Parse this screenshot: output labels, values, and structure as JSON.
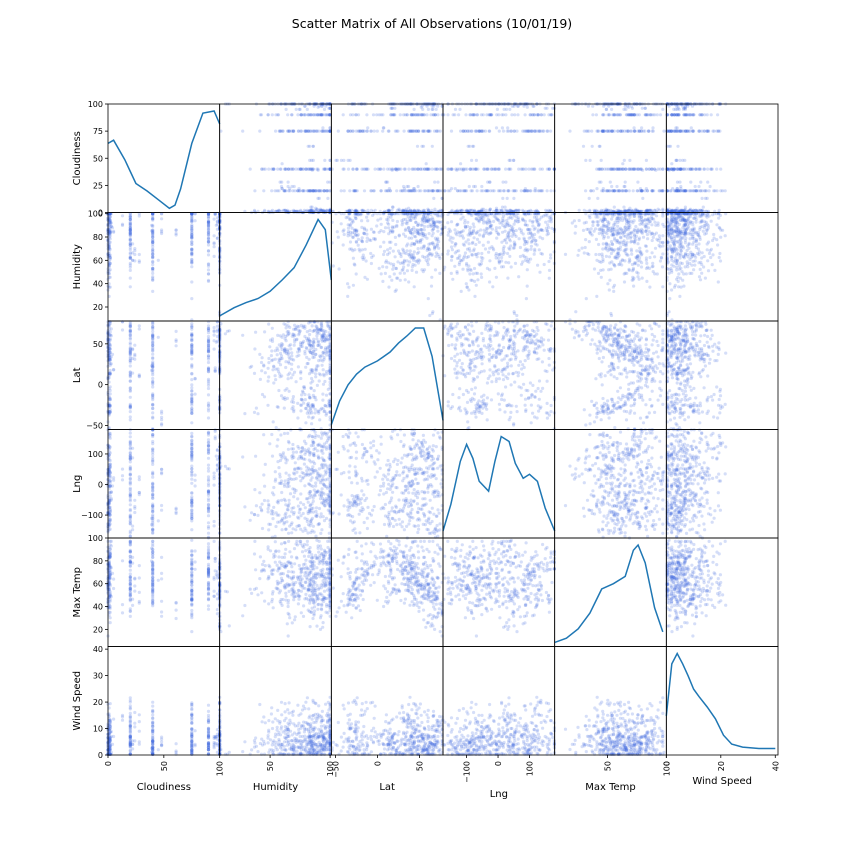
{
  "chart_data": {
    "type": "scatter",
    "title": "Scatter Matrix of All Observations (10/01/19)",
    "variables": [
      "Cloudiness",
      "Humidity",
      "Lat",
      "Lng",
      "Max Temp",
      "Wind Speed"
    ],
    "diagonal": "kde",
    "point_color": "#4169e1",
    "kde_color": "#1f77b4",
    "ranges": {
      "Cloudiness": [
        0,
        100
      ],
      "Humidity": [
        8,
        101
      ],
      "Lat": [
        -55,
        78
      ],
      "Lng": [
        -175,
        180
      ],
      "Max Temp": [
        5,
        100
      ],
      "Wind Speed": [
        0,
        41
      ]
    },
    "row_ticks": {
      "Cloudiness": [
        "0",
        "25",
        "50",
        "75",
        "100"
      ],
      "Humidity": [
        "20",
        "40",
        "60",
        "80",
        "100"
      ],
      "Lat": [
        "−50",
        "0",
        "50"
      ],
      "Lng": [
        "−100",
        "0",
        "100"
      ],
      "Max Temp": [
        "20",
        "40",
        "60",
        "80",
        "100"
      ],
      "Wind Speed": [
        "0",
        "10",
        "20",
        "30",
        "40"
      ]
    },
    "col_ticks": {
      "Cloudiness": [
        "0",
        "50",
        "100"
      ],
      "Humidity": [
        "50",
        "100"
      ],
      "Lat": [
        "−50",
        "0",
        "50"
      ],
      "Lng": [
        "−100",
        "0",
        "100"
      ],
      "Max Temp": [
        "50",
        "100"
      ],
      "Wind Speed": [
        "0",
        "20",
        "40"
      ]
    },
    "kde_curves": {
      "Cloudiness": {
        "x": [
          0,
          5,
          15,
          25,
          35,
          45,
          55,
          60,
          65,
          75,
          85,
          95,
          100
        ],
        "density": [
          0.62,
          0.65,
          0.47,
          0.25,
          0.18,
          0.1,
          0.02,
          0.05,
          0.2,
          0.62,
          0.9,
          0.92,
          0.8
        ]
      },
      "Humidity": {
        "x": [
          8,
          20,
          30,
          40,
          50,
          60,
          70,
          80,
          90,
          96,
          101
        ],
        "density": [
          0.03,
          0.11,
          0.16,
          0.2,
          0.27,
          0.38,
          0.5,
          0.72,
          0.97,
          0.87,
          0.38
        ]
      },
      "Lat": {
        "x": [
          -55,
          -45,
          -35,
          -25,
          -15,
          0,
          15,
          25,
          35,
          45,
          55,
          65,
          78
        ],
        "density": [
          0.03,
          0.3,
          0.48,
          0.6,
          0.68,
          0.75,
          0.85,
          0.95,
          1.03,
          1.12,
          1.12,
          0.8,
          0.08
        ]
      },
      "Lng": {
        "x": [
          -175,
          -150,
          -120,
          -100,
          -80,
          -60,
          -30,
          -10,
          10,
          35,
          55,
          80,
          100,
          125,
          150,
          180
        ],
        "density": [
          0.05,
          0.32,
          0.75,
          0.92,
          0.78,
          0.55,
          0.45,
          0.75,
          1.0,
          0.95,
          0.73,
          0.58,
          0.62,
          0.55,
          0.28,
          0.05
        ]
      },
      "Max Temp": {
        "x": [
          5,
          15,
          25,
          35,
          45,
          55,
          65,
          72,
          76,
          82,
          90,
          97
        ],
        "density": [
          0.02,
          0.06,
          0.15,
          0.3,
          0.53,
          0.58,
          0.65,
          0.9,
          0.95,
          0.78,
          0.35,
          0.12
        ]
      },
      "Wind Speed": {
        "x": [
          0,
          2,
          4,
          6,
          8,
          10,
          12,
          15,
          18,
          21,
          24,
          28,
          34,
          40
        ],
        "density": [
          0.25,
          0.6,
          0.67,
          0.6,
          0.52,
          0.43,
          0.38,
          0.31,
          0.23,
          0.12,
          0.06,
          0.04,
          0.03,
          0.03
        ]
      }
    },
    "sample_points": [
      [
        100,
        62,
        40,
        -6,
        57,
        2
      ],
      [
        100,
        16,
        66,
        51,
        23,
        1
      ],
      [
        100,
        92,
        68,
        31,
        20,
        4
      ],
      [
        100,
        86,
        -27,
        -55,
        46,
        9
      ],
      [
        100,
        77,
        -19,
        20,
        93,
        17
      ],
      [
        100,
        97,
        55,
        40,
        47,
        2
      ],
      [
        100,
        99,
        47,
        88,
        41,
        17
      ],
      [
        100,
        97,
        16,
        -7,
        69,
        5
      ],
      [
        100,
        67,
        49,
        -30,
        59,
        9
      ],
      [
        100,
        52,
        53,
        93,
        72,
        1
      ],
      [
        100,
        63,
        21,
        83,
        59,
        8
      ],
      [
        100,
        93,
        70,
        124,
        42,
        9
      ],
      [
        100,
        71,
        68,
        71,
        31,
        11
      ],
      [
        100,
        49,
        32,
        -70,
        65,
        13
      ],
      [
        100,
        68,
        -21,
        -158,
        65,
        2
      ],
      [
        100,
        94,
        -19,
        -46,
        80,
        7
      ],
      [
        100,
        82,
        57,
        -131,
        58,
        7
      ],
      [
        100,
        94,
        29,
        -27,
        60,
        6
      ],
      [
        100,
        74,
        36,
        54,
        54,
        15
      ],
      [
        100,
        95,
        62,
        123,
        48,
        3
      ],
      [
        75,
        65,
        72,
        -83,
        34,
        7
      ],
      [
        75,
        82,
        -23,
        156,
        73,
        4
      ],
      [
        75,
        96,
        43,
        -56,
        85,
        3
      ],
      [
        75,
        89,
        23,
        42,
        98,
        1
      ],
      [
        75,
        69,
        -18,
        131,
        54,
        15
      ],
      [
        75,
        98,
        55,
        145,
        77,
        5
      ],
      [
        75,
        99,
        -20,
        -61,
        50,
        15
      ],
      [
        75,
        93,
        -29,
        -60,
        41,
        3
      ],
      [
        75,
        58,
        13,
        34,
        79,
        12
      ],
      [
        75,
        81,
        -35,
        110,
        73,
        12
      ],
      [
        90,
        84,
        2,
        103,
        70,
        4
      ],
      [
        90,
        93,
        72,
        169,
        86,
        13
      ],
      [
        90,
        90,
        48,
        -23,
        69,
        7
      ],
      [
        90,
        99,
        55,
        -67,
        70,
        2
      ],
      [
        90,
        86,
        52,
        138,
        58,
        15
      ],
      [
        90,
        97,
        40,
        116,
        77,
        3
      ],
      [
        90,
        57,
        16,
        -53,
        73,
        4
      ],
      [
        90,
        96,
        -26,
        44,
        47,
        10
      ],
      [
        90,
        94,
        59,
        102,
        66,
        2
      ],
      [
        90,
        79,
        69,
        -143,
        56,
        3
      ],
      [
        40,
        89,
        56,
        -104,
        83,
        3
      ],
      [
        40,
        69,
        12,
        -14,
        53,
        2
      ],
      [
        40,
        68,
        25,
        -89,
        55,
        3
      ],
      [
        40,
        84,
        48,
        -157,
        62,
        11
      ],
      [
        40,
        63,
        59,
        -147,
        90,
        2
      ],
      [
        40,
        97,
        -13,
        -45,
        79,
        2
      ],
      [
        40,
        43,
        17,
        -86,
        52,
        6
      ],
      [
        40,
        59,
        32,
        162,
        43,
        4
      ],
      [
        40,
        85,
        -41,
        157,
        78,
        3
      ],
      [
        40,
        90,
        48,
        36,
        93,
        14
      ],
      [
        20,
        86,
        -26,
        128,
        45,
        20
      ],
      [
        20,
        97,
        13,
        -111,
        62,
        4
      ],
      [
        20,
        84,
        -4,
        74,
        79,
        7
      ],
      [
        20,
        88,
        37,
        5,
        54,
        14
      ],
      [
        20,
        92,
        12,
        -106,
        79,
        4
      ],
      [
        20,
        73,
        40,
        -107,
        66,
        11
      ],
      [
        20,
        69,
        62,
        95,
        56,
        4
      ],
      [
        20,
        77,
        -8,
        120,
        88,
        7
      ],
      [
        20,
        95,
        66,
        -31,
        82,
        11
      ],
      [
        20,
        62,
        42,
        1,
        96,
        5
      ],
      [
        1,
        72,
        55,
        106,
        83,
        6
      ],
      [
        1,
        49,
        27,
        -130,
        76,
        1
      ],
      [
        1,
        37,
        -34,
        -98,
        55,
        3
      ],
      [
        1,
        95,
        11,
        64,
        48,
        6
      ],
      [
        1,
        100,
        36,
        97,
        64,
        2
      ],
      [
        1,
        83,
        -16,
        97,
        70,
        2
      ],
      [
        1,
        73,
        -23,
        -47,
        65,
        3
      ],
      [
        1,
        74,
        71,
        -134,
        49,
        12
      ],
      [
        1,
        95,
        31,
        -51,
        84,
        8
      ],
      [
        1,
        84,
        44,
        34,
        48,
        5
      ],
      [
        2,
        62,
        44,
        167,
        83,
        13
      ],
      [
        2,
        100,
        -34,
        41,
        90,
        10
      ],
      [
        3,
        89,
        60,
        -25,
        74,
        1
      ],
      [
        1,
        56,
        -27,
        -57,
        62,
        2
      ],
      [
        4,
        88,
        37,
        -5,
        69,
        4
      ],
      [
        2,
        52,
        56,
        -27,
        51,
        10
      ],
      [
        1,
        64,
        -5,
        -122,
        76,
        5
      ],
      [
        0,
        100,
        -26,
        -61,
        70,
        3
      ],
      [
        0,
        78,
        53,
        36,
        92,
        2
      ],
      [
        3,
        92,
        34,
        -46,
        93,
        7
      ],
      [
        22,
        60,
        32,
        -148,
        83,
        4
      ],
      [
        13,
        91,
        67,
        29,
        80,
        15
      ],
      [
        97,
        90,
        52,
        93,
        68,
        7
      ],
      [
        22,
        60,
        43,
        87,
        41,
        4
      ],
      [
        28,
        98,
        72,
        -33,
        65,
        5
      ],
      [
        96,
        99,
        17,
        150,
        82,
        7
      ],
      [
        24,
        65,
        37,
        -72,
        58,
        12
      ],
      [
        95,
        81,
        65,
        -121,
        64,
        4
      ],
      [
        39,
        90,
        23,
        -131,
        91,
        1
      ],
      [
        75,
        84,
        -32,
        -119,
        54,
        10
      ],
      [
        28,
        65,
        12,
        16,
        43,
        9
      ],
      [
        98,
        79,
        59,
        114,
        67,
        6
      ],
      [
        61,
        83,
        53,
        -81,
        43,
        1
      ],
      [
        45,
        60,
        58,
        -119,
        63,
        2
      ],
      [
        95,
        75,
        66,
        27,
        97,
        7
      ],
      [
        48,
        86,
        -40,
        39,
        83,
        5
      ],
      [
        98,
        91,
        67,
        51,
        51,
        7
      ],
      [
        5,
        84,
        18,
        14,
        64,
        7
      ],
      [
        48,
        83,
        -35,
        -84,
        69,
        6
      ],
      [
        78,
        100,
        7,
        -5,
        79,
        4
      ]
    ]
  }
}
